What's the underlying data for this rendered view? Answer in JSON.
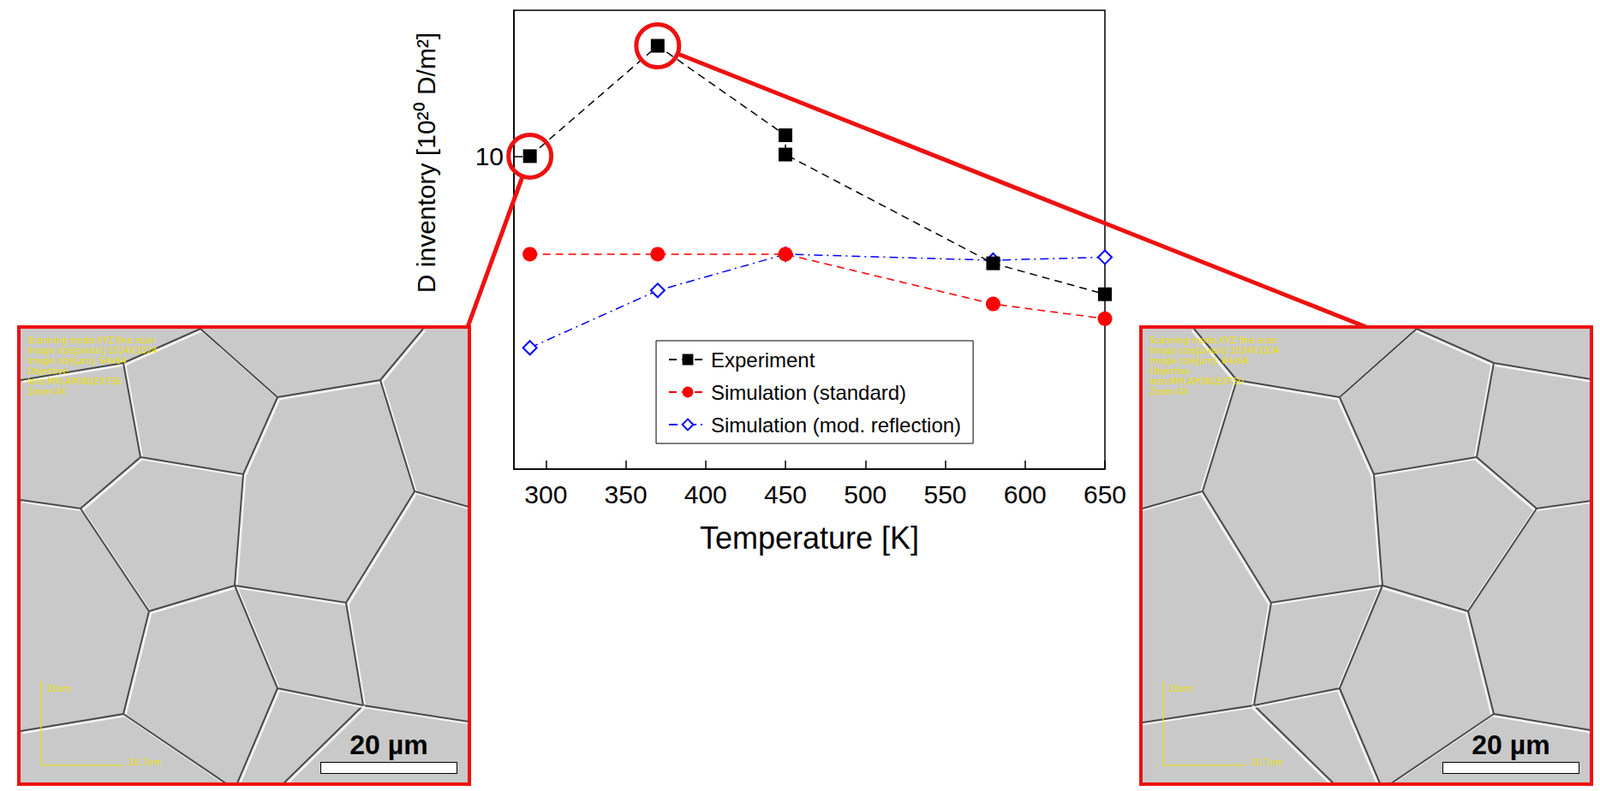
{
  "chart_data": {
    "type": "line",
    "xlabel": "Temperature [K]",
    "ylabel": "D inventory [10²⁰ D/m²]",
    "xlim": [
      280,
      650
    ],
    "xticks": [
      300,
      350,
      400,
      450,
      500,
      550,
      600,
      650
    ],
    "ylim": [
      1.4,
      25
    ],
    "yticks": [
      10
    ],
    "log": "y",
    "grid": false,
    "legend": "bottom",
    "series": [
      {
        "name": "Experiment",
        "color": "#000000",
        "marker": "square",
        "line_style": "dashed",
        "x": [
          290,
          370,
          450,
          450,
          580,
          650
        ],
        "values": [
          10,
          20,
          11.4,
          10.1,
          5.1,
          4.2
        ]
      },
      {
        "name": "Simulation (standard)",
        "color": "#ff0000",
        "marker": "circle",
        "line_style": "dashed",
        "x": [
          290,
          370,
          450,
          580,
          650
        ],
        "values": [
          5.4,
          5.4,
          5.4,
          3.95,
          3.6
        ]
      },
      {
        "name": "Simulation (mod. reflection)",
        "color": "#0000ff",
        "marker": "diamond_open",
        "line_style": "dashdot",
        "x": [
          290,
          370,
          450,
          580,
          650
        ],
        "values": [
          3.0,
          4.3,
          5.4,
          5.2,
          5.3
        ]
      }
    ]
  },
  "insets": [
    {
      "series": "Experiment",
      "x": 290,
      "overlay_text": [
        "Scanning mode:XYZ fine scan",
        "Image size[pixels]:1024X1024",
        "Image size[µm]: 64x64",
        "Objective",
        "lens:MPLAPONLEXT50",
        "Zoom:4X"
      ],
      "scale_labels": [
        "10um",
        "10.7um"
      ],
      "scale_bar": "20 µm"
    },
    {
      "series": "Experiment",
      "x": 370,
      "overlay_text": [
        "Scanning mode:XYZ fine scan",
        "Image size[pixels]:1024X1024",
        "Image size[µm]: 64x64",
        "Objective",
        "lens:MPLAPONLEXT50",
        "Zoom:4X"
      ],
      "scale_labels": [
        "10um",
        "10.7um"
      ],
      "scale_bar": "20 µm"
    }
  ]
}
